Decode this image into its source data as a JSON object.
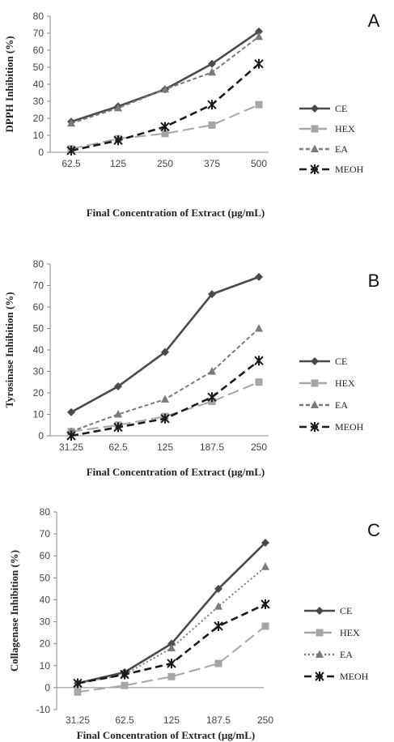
{
  "chart_data": [
    {
      "type": "line",
      "panel": "A",
      "categories": [
        "62.5",
        "125",
        "250",
        "375",
        "500"
      ],
      "xlabel": "Final Concentration  of Extract  (µg/mL)",
      "ylabel": "DPPH Inhibition  (%)",
      "ylim": [
        0,
        80
      ],
      "yticks": [
        0,
        10,
        20,
        30,
        40,
        50,
        60,
        70,
        80
      ],
      "legend_position": "right",
      "series": [
        {
          "name": "CE",
          "values": [
            18,
            27,
            37,
            52,
            71
          ]
        },
        {
          "name": "HEX",
          "values": [
            2,
            8,
            11,
            16,
            28
          ]
        },
        {
          "name": "EA",
          "values": [
            17,
            26,
            37,
            47,
            68
          ]
        },
        {
          "name": "MEOH",
          "values": [
            1,
            7,
            15,
            28,
            52
          ]
        }
      ]
    },
    {
      "type": "line",
      "panel": "B",
      "categories": [
        "31.25",
        "62.5",
        "125",
        "187.5",
        "250"
      ],
      "xlabel": "Final Concentration  of Extract  (µg/mL)",
      "ylabel": "Tyrosinase Inhibition  (%)",
      "ylim": [
        0,
        80
      ],
      "yticks": [
        0,
        10,
        20,
        30,
        40,
        50,
        60,
        70,
        80
      ],
      "legend_position": "right",
      "series": [
        {
          "name": "CE",
          "values": [
            11,
            23,
            39,
            66,
            74
          ]
        },
        {
          "name": "HEX",
          "values": [
            2,
            5,
            9,
            16,
            25
          ]
        },
        {
          "name": "EA",
          "values": [
            2,
            10,
            17,
            30,
            50
          ]
        },
        {
          "name": "MEOH",
          "values": [
            0,
            4,
            8,
            18,
            35
          ]
        }
      ]
    },
    {
      "type": "line",
      "panel": "C",
      "categories": [
        "31.25",
        "62.5",
        "125",
        "187.5",
        "250"
      ],
      "xlabel": "Final Concentration  of Extract  (µg/mL)",
      "ylabel": "Collagenase Inhibition  (%)",
      "ylim": [
        -10,
        80
      ],
      "yticks": [
        -10,
        0,
        10,
        20,
        30,
        40,
        50,
        60,
        70,
        80
      ],
      "legend_position": "right",
      "series": [
        {
          "name": "CE",
          "values": [
            2,
            7,
            20,
            45,
            66
          ]
        },
        {
          "name": "HEX",
          "values": [
            -2,
            1,
            5,
            11,
            28
          ]
        },
        {
          "name": "EA",
          "values": [
            2,
            6,
            18,
            37,
            55
          ]
        },
        {
          "name": "MEOH",
          "values": [
            2,
            6,
            11,
            28,
            38
          ]
        }
      ]
    }
  ],
  "series_style": {
    "CE": {
      "color": "#4a4a4a",
      "marker": "diamond",
      "dash": "solid"
    },
    "HEX": {
      "color": "#a6a6a6",
      "marker": "square",
      "dash": "long-dash"
    },
    "EA": {
      "color": "#7a7a7a",
      "marker": "triangle",
      "dash": "short-dash"
    },
    "MEOH": {
      "color": "#1a1a1a",
      "marker": "x-star",
      "dash": "dash"
    }
  },
  "series_style_panel_c_ea": {
    "dash": "dotted"
  }
}
